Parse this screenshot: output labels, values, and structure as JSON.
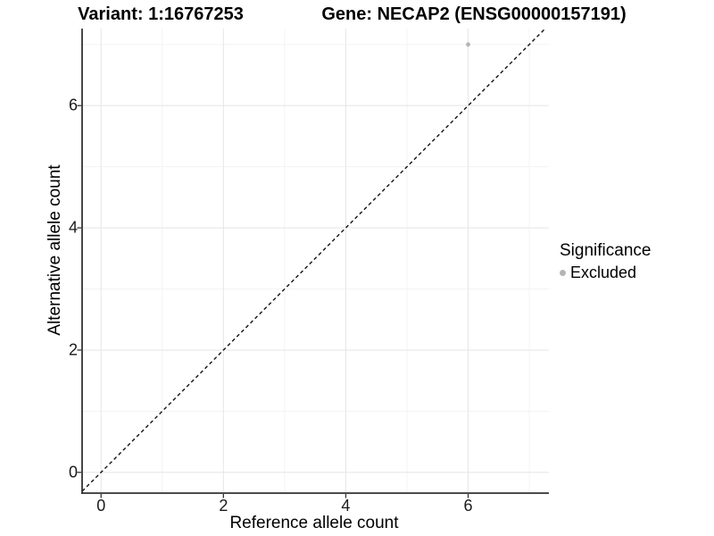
{
  "titles": {
    "variant": "Variant: 1:16767253",
    "gene": "Gene: NECAP2 (ENSG00000157191)"
  },
  "axes": {
    "x_label": "Reference allele count",
    "y_label": "Alternative allele count"
  },
  "legend": {
    "title": "Significance",
    "items": [
      {
        "label": "Excluded",
        "color": "#b5b5b5"
      }
    ]
  },
  "colors": {
    "background": "#ffffff",
    "grid_major": "#e7e7e7",
    "grid_minor": "#f3f3f3",
    "axis_line": "#333333",
    "tick_mark": "#333333",
    "point": "#b5b5b5",
    "reference_line": "#111111",
    "text": "#000000"
  },
  "chart_data": {
    "type": "scatter",
    "title": "Variant: 1:16767253    Gene: NECAP2 (ENSG00000157191)",
    "xlabel": "Reference allele count",
    "ylabel": "Alternative allele count",
    "xlim": [
      -0.31,
      7.32
    ],
    "ylim": [
      -0.34,
      7.26
    ],
    "x_ticks": [
      0,
      2,
      4,
      6
    ],
    "y_ticks": [
      0,
      2,
      4,
      6
    ],
    "x_minor_ticks": [
      1,
      3,
      5,
      7
    ],
    "y_minor_ticks": [
      1,
      3,
      5,
      7
    ],
    "grid": true,
    "series": [
      {
        "name": "Excluded",
        "color": "#b5b5b5",
        "points": [
          {
            "x": 6,
            "y": 7
          }
        ]
      }
    ],
    "reference_line": {
      "kind": "abline",
      "slope": 1,
      "intercept": 0,
      "style": "dashed",
      "color": "#111111"
    },
    "legend_position": "right"
  }
}
